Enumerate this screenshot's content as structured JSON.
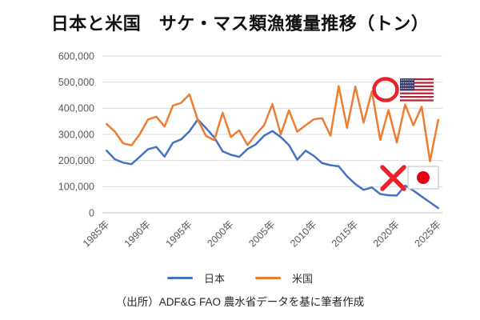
{
  "title": "日本と米国　サケ・マス類漁獲量推移（トン）",
  "source": "（出所）ADF&G FAO 農水省データを基に筆者作成",
  "legend": {
    "japan": "日本",
    "us": "米国"
  },
  "colors": {
    "japan_line": "#4472C4",
    "us_line": "#ED7D31",
    "grid": "#DCDCDC",
    "axis_line": "#C2C2C2",
    "axis_text": "#595959",
    "annotation_red": "#E8232B",
    "japan_flag_red": "#E60012",
    "us_flag_red": "#B22234",
    "us_flag_navy": "#3C3B6E"
  },
  "chart_data": {
    "type": "line",
    "title": "日本と米国　サケ・マス類漁獲量推移（トン）",
    "xlabel": "",
    "ylabel": "",
    "ylim": [
      0,
      600000
    ],
    "grid": true,
    "legend_position": "bottom",
    "x_years": [
      1985,
      1986,
      1987,
      1988,
      1989,
      1990,
      1991,
      1992,
      1993,
      1994,
      1995,
      1996,
      1997,
      1998,
      1999,
      2000,
      2001,
      2002,
      2003,
      2004,
      2005,
      2006,
      2007,
      2008,
      2009,
      2010,
      2011,
      2012,
      2013,
      2014,
      2015,
      2016,
      2017,
      2018,
      2019,
      2020,
      2021,
      2022,
      2023,
      2024,
      2025
    ],
    "x_tick_years": [
      1985,
      1990,
      1995,
      2000,
      2005,
      2010,
      2015,
      2020,
      2025
    ],
    "x_tick_labels": [
      "1985年",
      "1990年",
      "1995年",
      "2000年",
      "2005年",
      "2010年",
      "2015年",
      "2020年",
      "2025年"
    ],
    "y_ticks": [
      {
        "value": 0,
        "label": "0"
      },
      {
        "value": 100000,
        "label": "100,000"
      },
      {
        "value": 200000,
        "label": "200,000"
      },
      {
        "value": 300000,
        "label": "300,000"
      },
      {
        "value": 400000,
        "label": "400,000"
      },
      {
        "value": 500000,
        "label": "500,000"
      },
      {
        "value": 600000,
        "label": "600,000"
      }
    ],
    "series": [
      {
        "name": "日本",
        "color": "#4472C4",
        "values": [
          238000,
          205000,
          192000,
          186000,
          214000,
          243000,
          252000,
          215000,
          268000,
          281000,
          312000,
          357000,
          324000,
          288000,
          235000,
          222000,
          214000,
          244000,
          262000,
          295000,
          313000,
          290000,
          259000,
          203000,
          238000,
          218000,
          190000,
          182000,
          178000,
          140000,
          110000,
          88000,
          97000,
          72000,
          67000,
          66000,
          104000,
          85000,
          62000,
          40000,
          18000
        ]
      },
      {
        "name": "米国",
        "color": "#ED7D31",
        "values": [
          340000,
          311000,
          266000,
          258000,
          300000,
          357000,
          368000,
          330000,
          410000,
          421000,
          453000,
          356000,
          294000,
          278000,
          383000,
          290000,
          316000,
          259000,
          300000,
          335000,
          416000,
          300000,
          392000,
          310000,
          335000,
          358000,
          362000,
          295000,
          485000,
          325000,
          483000,
          345000,
          465000,
          279000,
          393000,
          269000,
          414000,
          335000,
          406000,
          197000,
          356000
        ]
      }
    ],
    "annotations": [
      {
        "name": "red-circle-mark",
        "attached_to": "米国"
      },
      {
        "name": "us-flag",
        "attached_to": "米国"
      },
      {
        "name": "red-cross-mark",
        "attached_to": "日本"
      },
      {
        "name": "japan-flag",
        "attached_to": "日本"
      }
    ]
  }
}
